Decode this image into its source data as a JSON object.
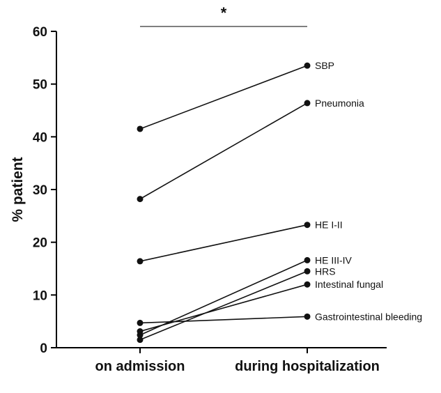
{
  "chart_data": {
    "type": "line",
    "categories": [
      "on admission",
      "during hospitalization"
    ],
    "ylabel": "% patient",
    "xlabel": "",
    "ylim": [
      0,
      60
    ],
    "yticks": [
      0,
      10,
      20,
      30,
      40,
      50,
      60
    ],
    "significance": "*",
    "grid": false,
    "series": [
      {
        "name": "SBP",
        "values": [
          41.5,
          53.5
        ]
      },
      {
        "name": "Pneumonia",
        "values": [
          28.2,
          46.4
        ]
      },
      {
        "name": "HE I-II",
        "values": [
          16.4,
          23.3
        ]
      },
      {
        "name": "HE III-IV",
        "values": [
          2.4,
          16.6
        ]
      },
      {
        "name": "HRS",
        "values": [
          1.5,
          14.5
        ]
      },
      {
        "name": "Intestinal fungal",
        "values": [
          3.1,
          12.0
        ]
      },
      {
        "name": "Gastrointestinal bleeding",
        "values": [
          4.7,
          5.9
        ]
      }
    ],
    "colors": {
      "line": "#111111",
      "point": "#111111"
    }
  }
}
